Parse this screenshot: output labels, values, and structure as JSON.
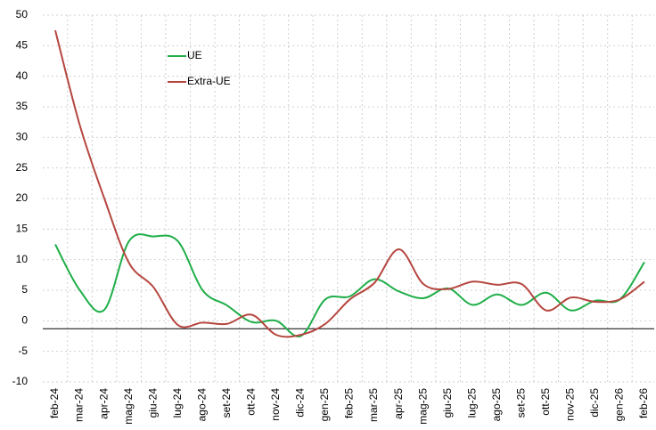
{
  "chart_data": {
    "type": "line",
    "categories": [
      "feb-24",
      "mar-24",
      "apr-24",
      "mag-24",
      "giu-24",
      "lug-24",
      "ago-24",
      "set-24",
      "ott-24",
      "nov-24",
      "dic-24",
      "gen-25",
      "feb-25",
      "mar-25",
      "apr-25",
      "mag-25",
      "giu-25",
      "lug-25",
      "ago-25",
      "set-25",
      "ott-25",
      "nov-25",
      "dic-25",
      "gen-26",
      "feb-26"
    ],
    "series": [
      {
        "name": "UE",
        "color": "#1fae48",
        "values": [
          12.5,
          5,
          1.8,
          13,
          13.8,
          13,
          5,
          2.5,
          -0.2,
          0,
          -2.5,
          3.5,
          4,
          6.8,
          4.8,
          3.7,
          5.3,
          2.6,
          4.3,
          2.6,
          4.6,
          1.7,
          3.3,
          3.5,
          9.6
        ]
      },
      {
        "name": "Extra-UE",
        "color": "#b5463f",
        "values": [
          47.5,
          32,
          20,
          9.5,
          5.5,
          -0.7,
          -0.3,
          -0.5,
          1,
          -2.3,
          -2.3,
          -0.5,
          3.5,
          6.2,
          11.7,
          6,
          5.2,
          6.4,
          5.9,
          6,
          1.7,
          3.8,
          3.1,
          3.5,
          6.4
        ]
      }
    ],
    "ylim": [
      -10,
      50
    ],
    "yticks": [
      -10,
      -5,
      0,
      5,
      10,
      15,
      20,
      25,
      30,
      35,
      40,
      45,
      50
    ],
    "baseline": -1.3,
    "grid": true,
    "smooth": true,
    "legend": "top-left"
  }
}
